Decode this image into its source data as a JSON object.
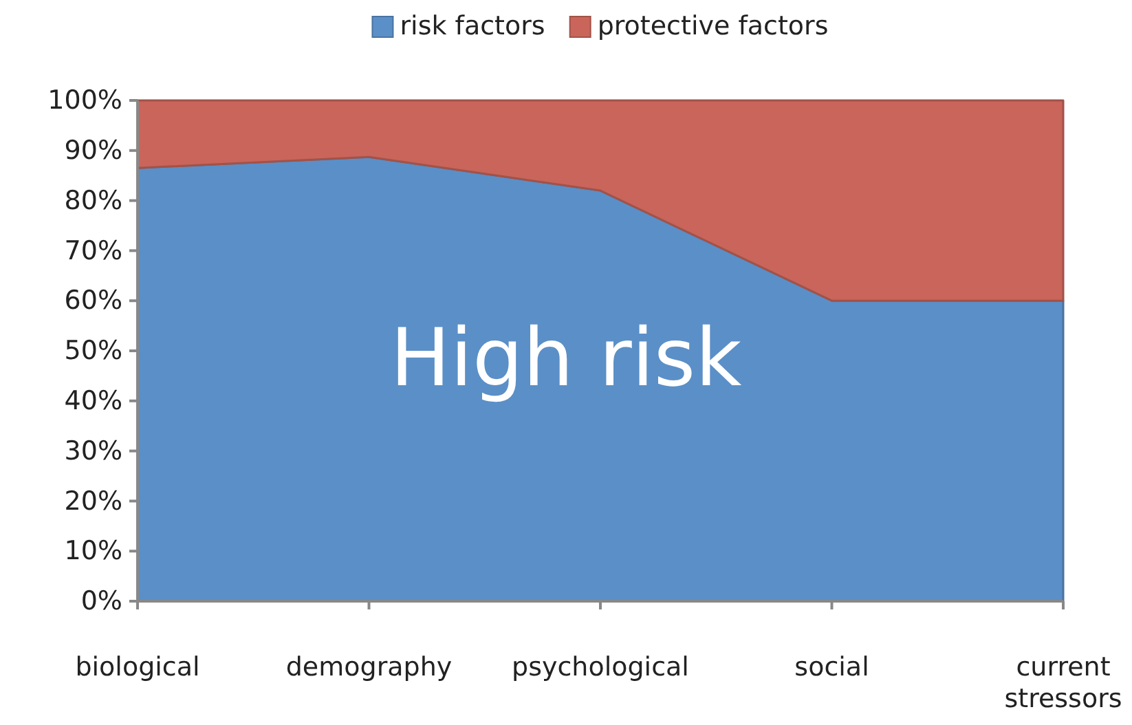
{
  "chart_data": {
    "type": "area",
    "stacked": true,
    "categories": [
      "biological",
      "demography",
      "psychological",
      "social",
      "current stressors"
    ],
    "series": [
      {
        "name": "risk factors",
        "color": "#5b8fc7",
        "values": [
          86.5,
          88.7,
          82,
          60,
          60
        ]
      },
      {
        "name": "protective factors",
        "color": "#c9655a",
        "values": [
          13.5,
          11.3,
          18,
          40,
          40
        ]
      }
    ],
    "ylim": [
      0,
      100
    ],
    "yticks": [
      {
        "value": 0,
        "label": "0%"
      },
      {
        "value": 10,
        "label": "10%"
      },
      {
        "value": 20,
        "label": "20%"
      },
      {
        "value": 30,
        "label": "30%"
      },
      {
        "value": 40,
        "label": "40%"
      },
      {
        "value": 50,
        "label": "50%"
      },
      {
        "value": 60,
        "label": "60%"
      },
      {
        "value": 70,
        "label": "70%"
      },
      {
        "value": 80,
        "label": "80%"
      },
      {
        "value": 90,
        "label": "90%"
      },
      {
        "value": 100,
        "label": "100%"
      }
    ],
    "legend": "top",
    "annotations": [
      "High risk"
    ]
  }
}
